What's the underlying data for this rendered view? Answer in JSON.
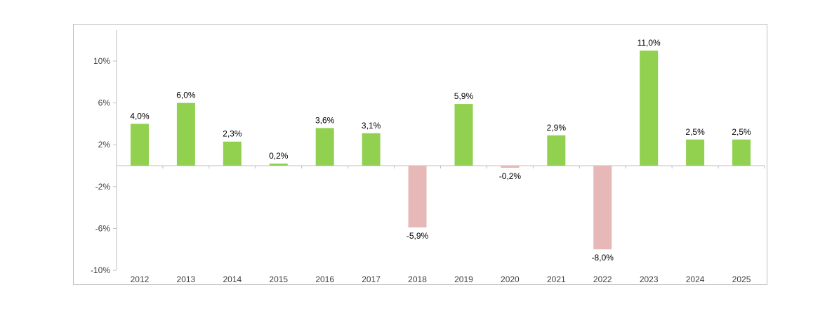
{
  "chart_data": {
    "type": "bar",
    "categories": [
      "2012",
      "2013",
      "2014",
      "2015",
      "2016",
      "2017",
      "2018",
      "2019",
      "2020",
      "2021",
      "2022",
      "2023",
      "2024",
      "2025"
    ],
    "values": [
      4.0,
      6.0,
      2.3,
      0.2,
      3.6,
      3.1,
      -5.9,
      5.9,
      -0.2,
      2.9,
      -8.0,
      11.0,
      2.5,
      2.5
    ],
    "data_labels": [
      "4,0%",
      "6,0%",
      "2,3%",
      "0,2%",
      "3,6%",
      "3,1%",
      "-5,9%",
      "5,9%",
      "-0,2%",
      "2,9%",
      "-8,0%",
      "11,0%",
      "2,5%",
      "2,5%"
    ],
    "yticks": [
      10,
      6,
      2,
      -2,
      -6,
      -10
    ],
    "ytick_labels": [
      "10%",
      "6%",
      "2%",
      "-2%",
      "-6%",
      "-10%"
    ],
    "ylim": [
      -10,
      13
    ],
    "title": "",
    "xlabel": "",
    "ylabel": "",
    "grid": false,
    "legend": false,
    "colors": {
      "positive": "#92d050",
      "negative": "#e6b8b7",
      "axis": "#bfbfbf"
    }
  }
}
